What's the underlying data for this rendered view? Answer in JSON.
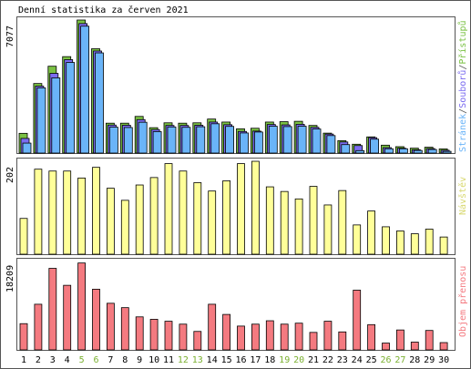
{
  "title": "Denní statistika za červen 2021",
  "colors": {
    "background": "#ffffff",
    "frame": "#555555",
    "hits": "#7ac143",
    "files": "#7b6cf0",
    "pages": "#6ab4f8",
    "visits": "#ffff99",
    "kbytes": "#f47a80",
    "weekend_day": "#7ab030",
    "weekday": "#000000"
  },
  "chart_data": [
    {
      "type": "bar",
      "title": "Denní statistika za červen 2021",
      "y_max_label": "7077",
      "ylim": [
        0,
        7077
      ],
      "legend": {
        "position": "right",
        "entries": [
          {
            "name": "Stránek",
            "color": "#6ab4f8"
          },
          {
            "name": "/",
            "color": "#555555"
          },
          {
            "name": "Souborů",
            "color": "#7b6cf0"
          },
          {
            "name": "/",
            "color": "#555555"
          },
          {
            "name": "Přístupů",
            "color": "#7ac143"
          }
        ]
      },
      "categories": [
        "1",
        "2",
        "3",
        "4",
        "5",
        "6",
        "7",
        "8",
        "9",
        "10",
        "11",
        "12",
        "13",
        "14",
        "15",
        "16",
        "17",
        "18",
        "19",
        "20",
        "21",
        "22",
        "23",
        "24",
        "25",
        "26",
        "27",
        "28",
        "29",
        "30"
      ],
      "series": [
        {
          "name": "Přístupů",
          "values": [
            1050,
            3700,
            4620,
            5130,
            7077,
            5550,
            1590,
            1590,
            1950,
            1350,
            1610,
            1590,
            1610,
            1810,
            1650,
            1290,
            1320,
            1650,
            1670,
            1690,
            1470,
            1060,
            660,
            470,
            860,
            420,
            340,
            260,
            310,
            220
          ]
        },
        {
          "name": "Souborů",
          "values": [
            780,
            3560,
            4240,
            4970,
            6890,
            5430,
            1490,
            1480,
            1780,
            1250,
            1470,
            1470,
            1480,
            1650,
            1510,
            1150,
            1170,
            1520,
            1500,
            1530,
            1370,
            1010,
            590,
            400,
            820,
            290,
            260,
            180,
            240,
            150
          ]
        },
        {
          "name": "Stránek",
          "values": [
            530,
            3470,
            4000,
            4820,
            6750,
            5330,
            1380,
            1360,
            1640,
            1140,
            1390,
            1370,
            1400,
            1560,
            1420,
            1070,
            1120,
            1430,
            1410,
            1430,
            1280,
            930,
            450,
            130,
            740,
            230,
            230,
            140,
            190,
            90
          ]
        }
      ]
    },
    {
      "type": "bar",
      "y_max_label": "202",
      "ylim": [
        0,
        202
      ],
      "legend": {
        "position": "right",
        "entries": [
          {
            "name": "Návštěv",
            "color": "#ffff99"
          }
        ]
      },
      "categories": [
        "1",
        "2",
        "3",
        "4",
        "5",
        "6",
        "7",
        "8",
        "9",
        "10",
        "11",
        "12",
        "13",
        "14",
        "15",
        "16",
        "17",
        "18",
        "19",
        "20",
        "21",
        "22",
        "23",
        "24",
        "25",
        "26",
        "27",
        "28",
        "29",
        "30"
      ],
      "series": [
        {
          "name": "Návštěv",
          "values": [
            77,
            183,
            179,
            179,
            164,
            187,
            142,
            116,
            149,
            165,
            195,
            179,
            154,
            136,
            158,
            195,
            200,
            145,
            135,
            119,
            146,
            106,
            137,
            63,
            93,
            59,
            50,
            44,
            54,
            37
          ]
        }
      ]
    },
    {
      "type": "bar",
      "y_max_label": "18209",
      "ylim": [
        0,
        18209
      ],
      "legend": {
        "position": "right",
        "entries": [
          {
            "name": "Objem přenosu",
            "color": "#f47a80"
          }
        ]
      },
      "categories": [
        "1",
        "2",
        "3",
        "4",
        "5",
        "6",
        "7",
        "8",
        "9",
        "10",
        "11",
        "12",
        "13",
        "14",
        "15",
        "16",
        "17",
        "18",
        "19",
        "20",
        "21",
        "22",
        "23",
        "24",
        "25",
        "26",
        "27",
        "28",
        "29",
        "30"
      ],
      "series": [
        {
          "name": "Objem přenosu",
          "values": [
            5400,
            9400,
            16800,
            13300,
            17900,
            12500,
            9600,
            8700,
            6800,
            6300,
            5900,
            5300,
            3800,
            9400,
            7300,
            4900,
            5300,
            6000,
            5300,
            5500,
            3600,
            5900,
            3700,
            12300,
            5200,
            1400,
            4100,
            1600,
            4000,
            1500
          ]
        }
      ]
    }
  ]
}
